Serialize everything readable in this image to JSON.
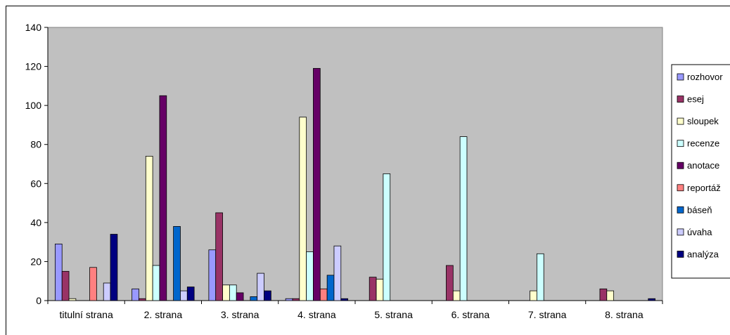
{
  "chart_data": {
    "type": "bar",
    "title": "",
    "xlabel": "",
    "ylabel": "",
    "ylim": [
      0,
      140
    ],
    "yticks": [
      0,
      20,
      40,
      60,
      80,
      100,
      120,
      140
    ],
    "grid": false,
    "legend_position": "right",
    "plot_background": "#c0c0c0",
    "categories": [
      "titulní strana",
      "2. strana",
      "3. strana",
      "4. strana",
      "5. strana",
      "6. strana",
      "7. strana",
      "8. strana"
    ],
    "series": [
      {
        "name": "rozhovor",
        "color": "#9999ff",
        "values": [
          29,
          6,
          26,
          1,
          0,
          0,
          0,
          0
        ]
      },
      {
        "name": "esej",
        "color": "#993366",
        "values": [
          15,
          1,
          45,
          1,
          12,
          18,
          0,
          6
        ]
      },
      {
        "name": "sloupek",
        "color": "#ffffcc",
        "values": [
          1,
          74,
          8,
          94,
          11,
          5,
          5,
          5
        ]
      },
      {
        "name": "recenze",
        "color": "#ccffff",
        "values": [
          0,
          18,
          8,
          25,
          65,
          84,
          24,
          0
        ]
      },
      {
        "name": "anotace",
        "color": "#660066",
        "values": [
          0,
          105,
          4,
          119,
          0,
          0,
          0,
          0
        ]
      },
      {
        "name": "reportáž",
        "color": "#ff8080",
        "values": [
          17,
          0,
          0,
          6,
          0,
          0,
          0,
          0
        ]
      },
      {
        "name": "báseň",
        "color": "#0066cc",
        "values": [
          0,
          38,
          2,
          13,
          0,
          0,
          0,
          0
        ]
      },
      {
        "name": "úvaha",
        "color": "#ccccff",
        "values": [
          9,
          5,
          14,
          28,
          0,
          0,
          0,
          0
        ]
      },
      {
        "name": "analýza",
        "color": "#000080",
        "values": [
          34,
          7,
          5,
          1,
          0,
          0,
          0,
          1
        ]
      }
    ]
  }
}
